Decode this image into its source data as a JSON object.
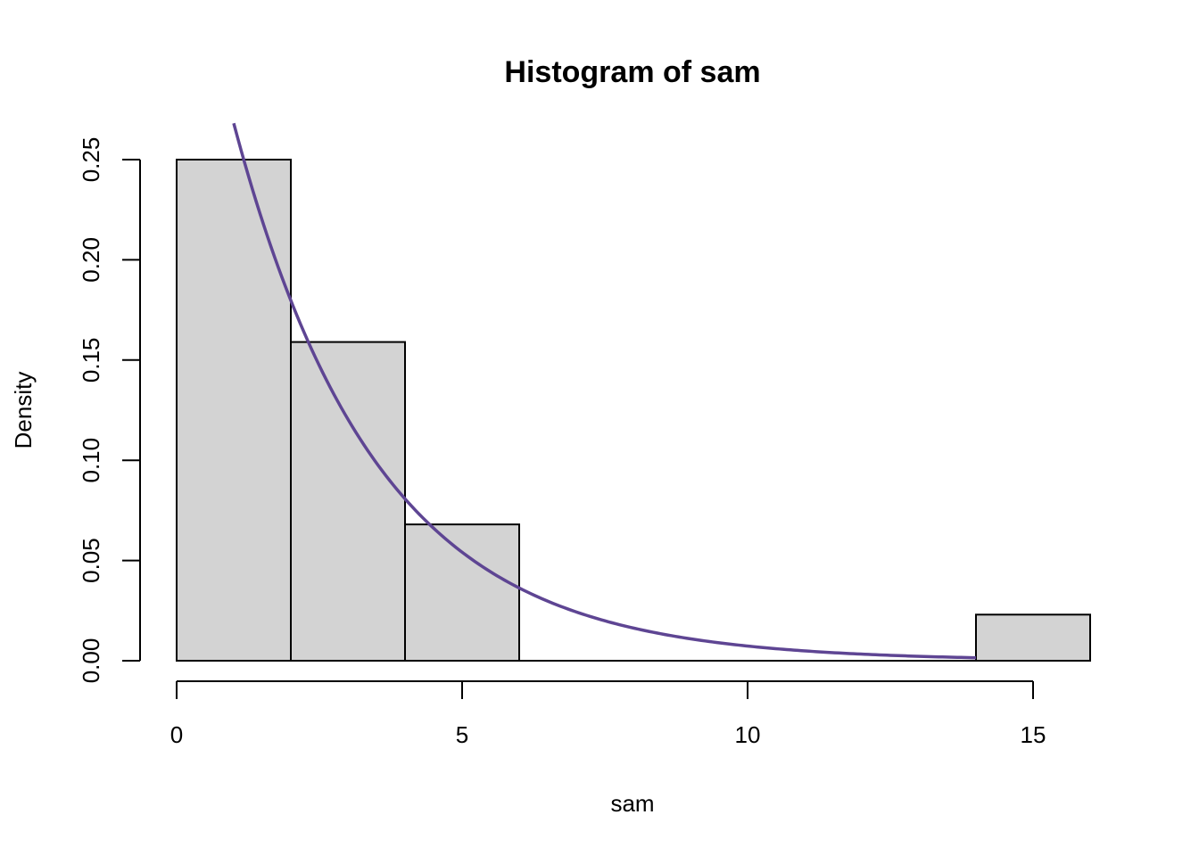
{
  "chart_data": {
    "type": "bar",
    "title": "Histogram of sam",
    "xlabel": "sam",
    "ylabel": "Density",
    "xlim": [
      0,
      16
    ],
    "ylim": [
      0,
      0.25
    ],
    "x_ticks": [
      0,
      5,
      10,
      15
    ],
    "x_tick_labels": [
      "0",
      "5",
      "10",
      "15"
    ],
    "y_ticks": [
      0,
      0.05,
      0.1,
      0.15,
      0.2,
      0.25
    ],
    "y_tick_labels": [
      "0.00",
      "0.05",
      "0.10",
      "0.15",
      "0.20",
      "0.25"
    ],
    "grid": false,
    "bins": [
      {
        "start": 0,
        "end": 2,
        "density": 0.25
      },
      {
        "start": 2,
        "end": 4,
        "density": 0.159
      },
      {
        "start": 4,
        "end": 6,
        "density": 0.068
      },
      {
        "start": 6,
        "end": 8,
        "density": 0
      },
      {
        "start": 8,
        "end": 10,
        "density": 0
      },
      {
        "start": 10,
        "end": 12,
        "density": 0
      },
      {
        "start": 12,
        "end": 14,
        "density": 0
      },
      {
        "start": 14,
        "end": 16,
        "density": 0.023
      }
    ],
    "curve": {
      "type": "exponential density",
      "rate": 0.4,
      "x_range": [
        1.0,
        14.0
      ],
      "color": "#5e4593"
    },
    "bar_fill": "#d3d3d3"
  }
}
